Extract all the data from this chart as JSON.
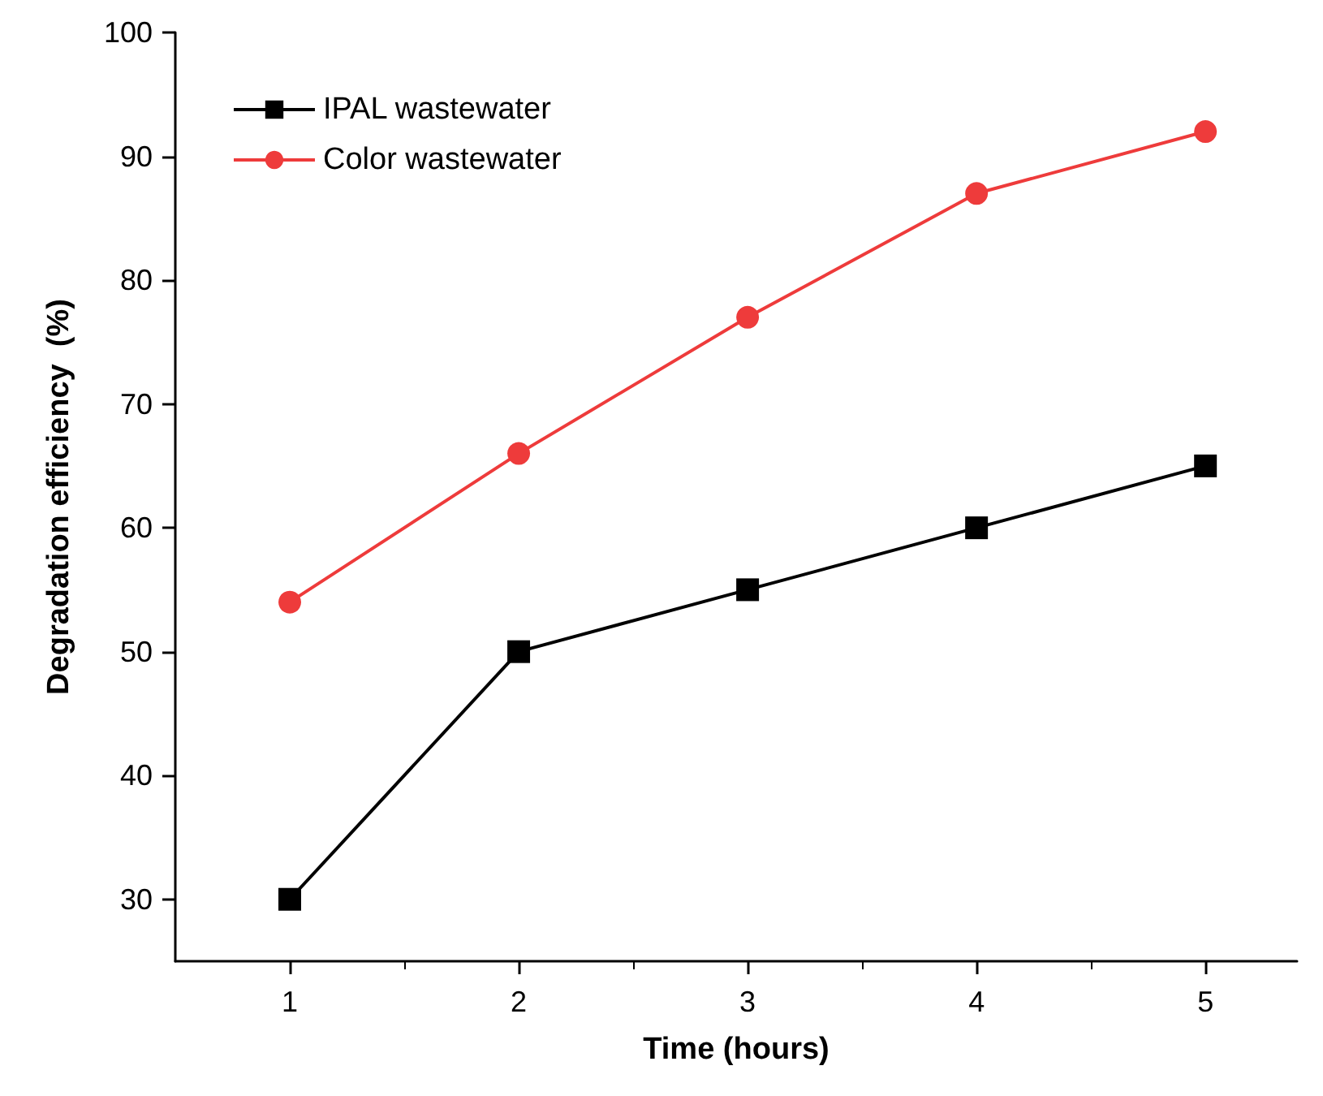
{
  "chart_data": {
    "type": "line",
    "xlabel": "Time (hours)",
    "ylabel": "Degradation efficiency  (%)",
    "x": [
      1,
      2,
      3,
      4,
      5
    ],
    "series": [
      {
        "name": "IPAL wastewater",
        "color": "#000000",
        "marker": "square",
        "values": [
          30,
          50,
          55,
          60,
          65
        ]
      },
      {
        "name": "Color wastewater",
        "color": "#ee3b3b",
        "marker": "circle",
        "values": [
          54,
          66,
          77,
          87,
          92
        ]
      }
    ],
    "xlim": [
      0.5,
      5.4
    ],
    "xticks": [
      1,
      2,
      3,
      4,
      5
    ],
    "ylim": [
      25,
      100
    ],
    "yticks": [
      30,
      40,
      50,
      60,
      70,
      80,
      90,
      100
    ],
    "grid": false,
    "legend": "top left",
    "line_style": "solid"
  }
}
